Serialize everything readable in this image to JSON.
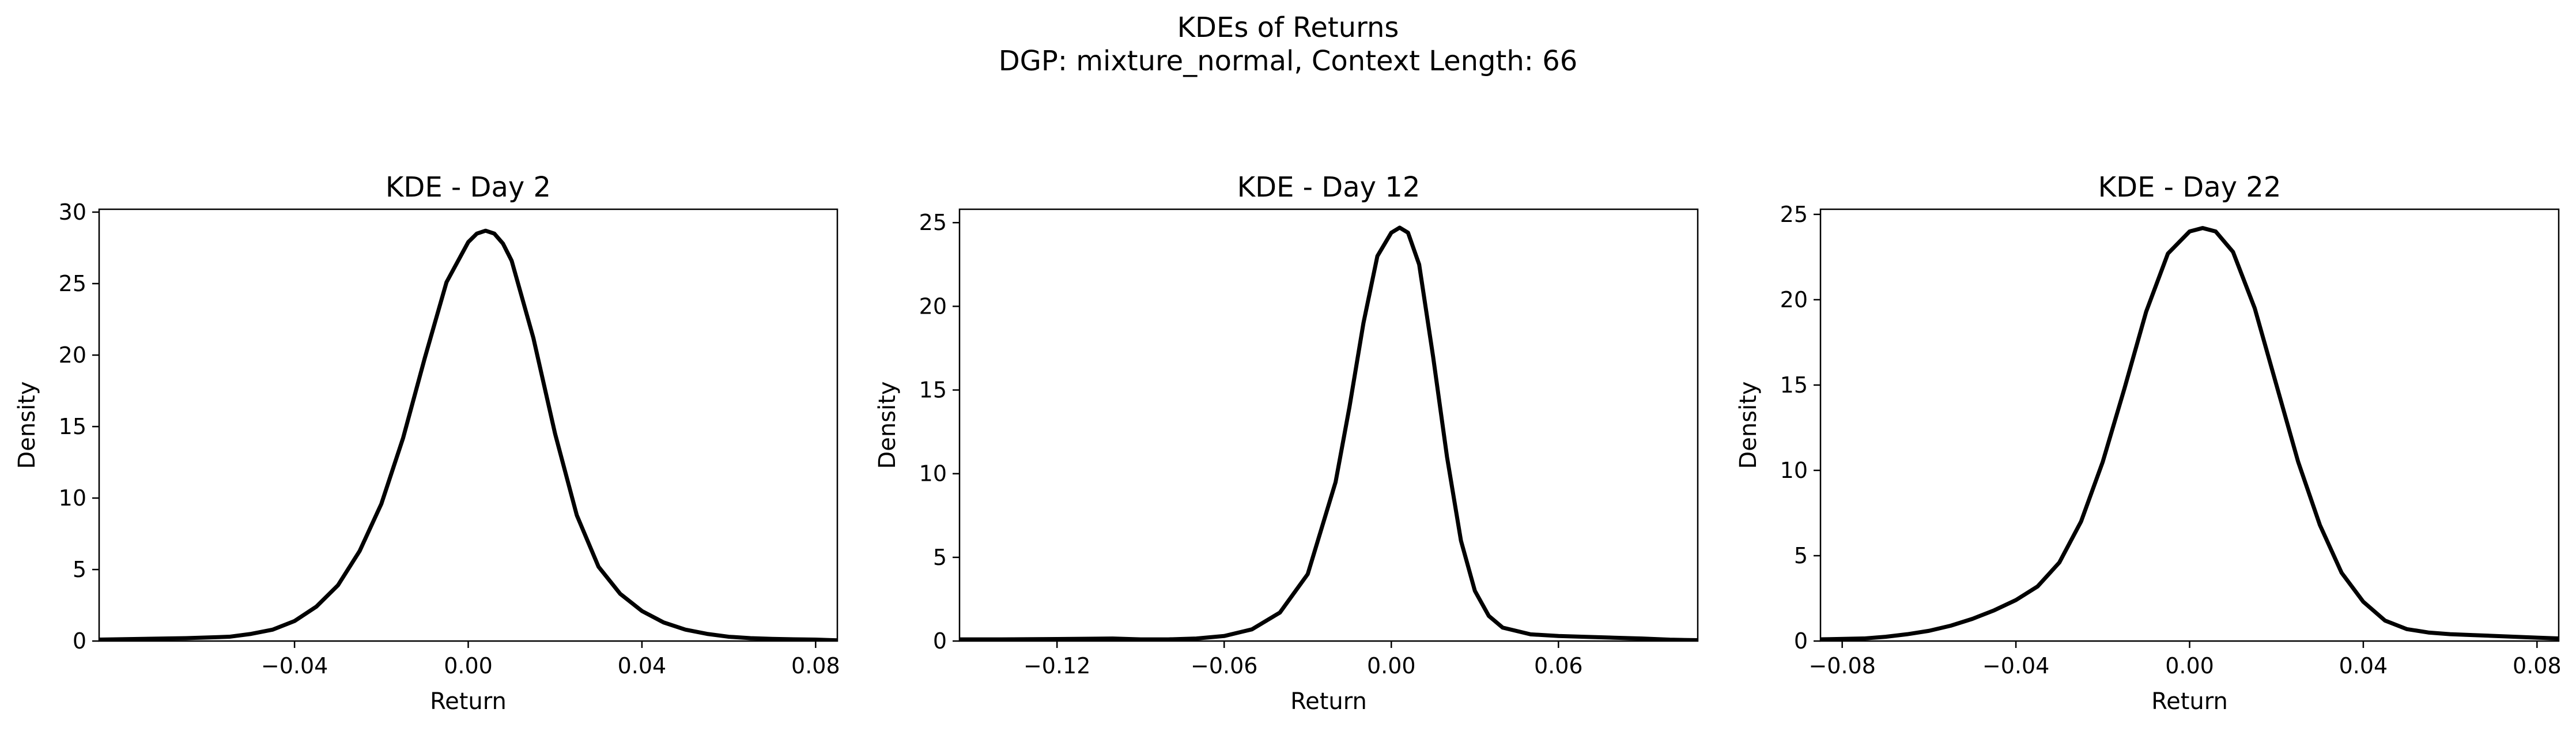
{
  "figure": {
    "title_line1": "KDEs of Returns",
    "title_line2": "DGP: mixture_normal, Context Length: 66"
  },
  "chart_data": [
    {
      "type": "line",
      "title": "KDE - Day 2",
      "xlabel": "Return",
      "ylabel": "Density",
      "xlim": [
        -0.085,
        0.085
      ],
      "ylim": [
        0,
        30.2
      ],
      "xticks": [
        -0.04,
        0.0,
        0.04,
        0.08
      ],
      "xtick_labels": [
        "−0.04",
        "0.00",
        "0.04",
        "0.08"
      ],
      "yticks": [
        0,
        5,
        10,
        15,
        20,
        25,
        30
      ],
      "ytick_labels": [
        "0",
        "5",
        "10",
        "15",
        "20",
        "25",
        "30"
      ],
      "grid": false,
      "legend": "none",
      "line_color": "#000000",
      "x": [
        -0.085,
        -0.075,
        -0.065,
        -0.055,
        -0.05,
        -0.045,
        -0.04,
        -0.035,
        -0.03,
        -0.025,
        -0.02,
        -0.015,
        -0.01,
        -0.005,
        0.0,
        0.002,
        0.004,
        0.006,
        0.008,
        0.01,
        0.015,
        0.02,
        0.025,
        0.03,
        0.035,
        0.04,
        0.045,
        0.05,
        0.055,
        0.06,
        0.065,
        0.07,
        0.075,
        0.08,
        0.085
      ],
      "y": [
        0.1,
        0.15,
        0.2,
        0.3,
        0.5,
        0.8,
        1.4,
        2.4,
        3.9,
        6.3,
        9.6,
        14.2,
        19.8,
        25.1,
        27.9,
        28.5,
        28.7,
        28.5,
        27.8,
        26.6,
        21.2,
        14.5,
        8.8,
        5.2,
        3.3,
        2.1,
        1.3,
        0.8,
        0.5,
        0.3,
        0.2,
        0.15,
        0.12,
        0.1,
        0.05
      ]
    },
    {
      "type": "line",
      "title": "KDE - Day 12",
      "xlabel": "Return",
      "ylabel": "Density",
      "xlim": [
        -0.155,
        0.11
      ],
      "ylim": [
        0,
        25.8
      ],
      "xticks": [
        -0.12,
        -0.06,
        0.0,
        0.06
      ],
      "xtick_labels": [
        "−0.12",
        "−0.06",
        "0.00",
        "0.06"
      ],
      "yticks": [
        0,
        5,
        10,
        15,
        20,
        25
      ],
      "ytick_labels": [
        "0",
        "5",
        "10",
        "15",
        "20",
        "25"
      ],
      "grid": false,
      "legend": "none",
      "line_color": "#000000",
      "x": [
        -0.155,
        -0.14,
        -0.12,
        -0.1,
        -0.09,
        -0.08,
        -0.07,
        -0.06,
        -0.05,
        -0.04,
        -0.03,
        -0.02,
        -0.015,
        -0.01,
        -0.005,
        0.0,
        0.003,
        0.006,
        0.01,
        0.015,
        0.02,
        0.025,
        0.03,
        0.035,
        0.04,
        0.05,
        0.06,
        0.07,
        0.08,
        0.09,
        0.1,
        0.11
      ],
      "y": [
        0.1,
        0.1,
        0.12,
        0.15,
        0.1,
        0.1,
        0.15,
        0.3,
        0.7,
        1.7,
        4.0,
        9.5,
        14.0,
        19.0,
        23.0,
        24.4,
        24.7,
        24.4,
        22.5,
        17.0,
        11.0,
        6.0,
        3.0,
        1.5,
        0.8,
        0.4,
        0.3,
        0.25,
        0.2,
        0.15,
        0.08,
        0.05
      ]
    },
    {
      "type": "line",
      "title": "KDE - Day 22",
      "xlabel": "Return",
      "ylabel": "Density",
      "xlim": [
        -0.085,
        0.085
      ],
      "ylim": [
        0,
        25.3
      ],
      "xticks": [
        -0.08,
        -0.04,
        0.0,
        0.04,
        0.08
      ],
      "xtick_labels": [
        "−0.08",
        "−0.04",
        "0.00",
        "0.04",
        "0.08"
      ],
      "yticks": [
        0,
        5,
        10,
        15,
        20,
        25
      ],
      "ytick_labels": [
        "0",
        "5",
        "10",
        "15",
        "20",
        "25"
      ],
      "grid": false,
      "legend": "none",
      "line_color": "#000000",
      "x": [
        -0.085,
        -0.075,
        -0.07,
        -0.065,
        -0.06,
        -0.055,
        -0.05,
        -0.045,
        -0.04,
        -0.035,
        -0.03,
        -0.025,
        -0.02,
        -0.015,
        -0.01,
        -0.005,
        0.0,
        0.003,
        0.006,
        0.01,
        0.015,
        0.02,
        0.025,
        0.03,
        0.035,
        0.04,
        0.045,
        0.05,
        0.055,
        0.06,
        0.065,
        0.07,
        0.075,
        0.08,
        0.085
      ],
      "y": [
        0.1,
        0.15,
        0.25,
        0.4,
        0.6,
        0.9,
        1.3,
        1.8,
        2.4,
        3.2,
        4.6,
        7.0,
        10.5,
        14.8,
        19.3,
        22.7,
        24.0,
        24.2,
        24.0,
        22.8,
        19.5,
        15.0,
        10.5,
        6.8,
        4.0,
        2.3,
        1.2,
        0.7,
        0.5,
        0.4,
        0.35,
        0.3,
        0.25,
        0.2,
        0.15
      ]
    }
  ]
}
